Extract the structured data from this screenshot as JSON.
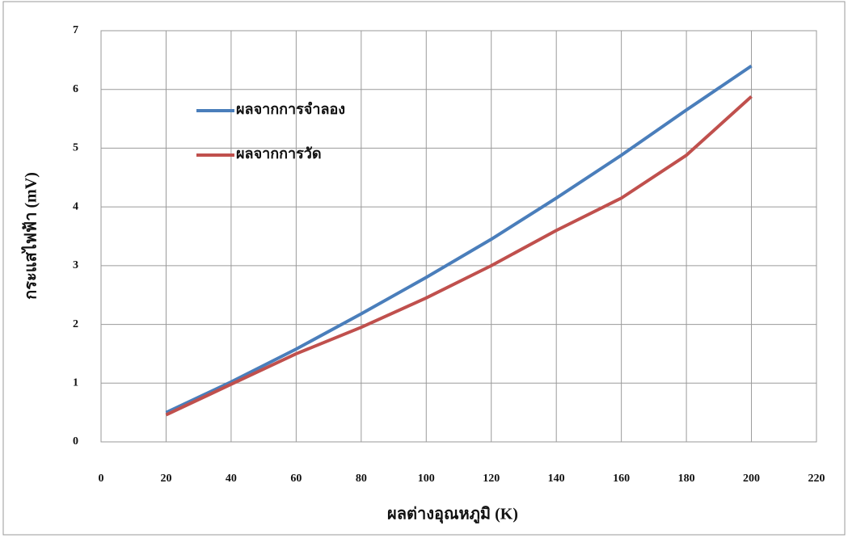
{
  "chart_data": {
    "type": "line",
    "x_label": "ผลต่างอุณหภูมิ (K)",
    "y_label": "กระแสไฟฟ้า (mV)",
    "x": [
      20,
      40,
      60,
      80,
      100,
      120,
      140,
      160,
      180,
      200
    ],
    "series": [
      {
        "name": "ผลจากการจำลอง",
        "color": "#4a7ebb",
        "values": [
          0.5,
          1.02,
          1.58,
          2.18,
          2.8,
          3.45,
          4.15,
          4.88,
          5.65,
          6.4
        ]
      },
      {
        "name": "ผลจากการวัด",
        "color": "#c0504d",
        "values": [
          0.46,
          0.98,
          1.5,
          1.95,
          2.45,
          3.0,
          3.6,
          4.15,
          4.88,
          5.88
        ]
      }
    ],
    "xlim": [
      0,
      220
    ],
    "xticks": [
      0,
      20,
      40,
      60,
      80,
      100,
      120,
      140,
      160,
      180,
      200,
      220
    ],
    "ylim": [
      0,
      7
    ],
    "yticks": [
      0,
      1,
      2,
      3,
      4,
      5,
      6,
      7
    ],
    "grid": true,
    "legend": "upper-left"
  }
}
